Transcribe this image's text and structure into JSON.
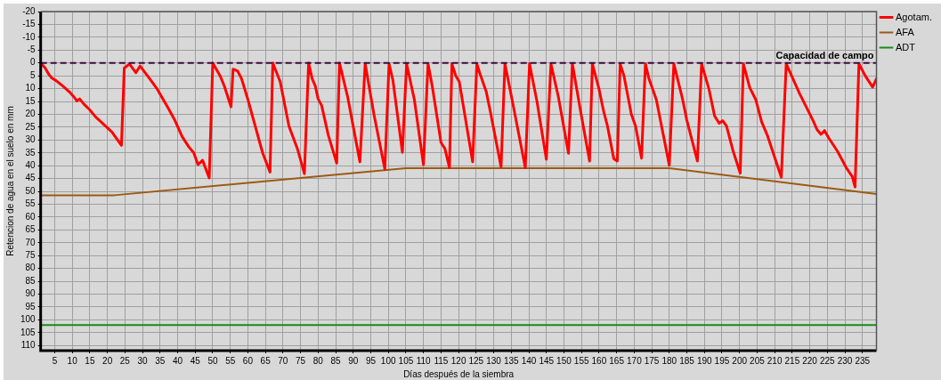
{
  "chart_data": {
    "type": "line",
    "xlabel": "Días después de la siembra",
    "ylabel": "Retencion de agua en el suelo en mm",
    "xlim": [
      1,
      239
    ],
    "xticks": [
      5,
      10,
      15,
      20,
      25,
      30,
      35,
      40,
      45,
      50,
      55,
      60,
      65,
      70,
      75,
      80,
      85,
      90,
      95,
      100,
      105,
      110,
      115,
      120,
      125,
      130,
      135,
      140,
      145,
      150,
      155,
      160,
      165,
      170,
      175,
      180,
      185,
      190,
      195,
      200,
      205,
      210,
      215,
      220,
      225,
      230,
      235
    ],
    "ylim": [
      112,
      -20
    ],
    "yticks": [
      -20,
      -15,
      -10,
      -5,
      0,
      5,
      10,
      15,
      20,
      25,
      30,
      35,
      40,
      45,
      50,
      55,
      60,
      65,
      70,
      75,
      80,
      85,
      90,
      95,
      100,
      105,
      110
    ],
    "grid": true,
    "legend": "top right",
    "marker": "none",
    "line_style": "solid",
    "ref_lines": [
      {
        "axis": "y",
        "value": 0,
        "label": "Capacidad de campo",
        "color": "#3c0a3c",
        "line_style": "dashed"
      }
    ],
    "series": [
      {
        "name": "Agotam.",
        "color": "#ff0000",
        "x": [
          1,
          2.3,
          3.3,
          4.2,
          5.4,
          7.3,
          9.2,
          10.7,
          11.3,
          12.1,
          13.3,
          15,
          16.7,
          17.9,
          21.3,
          24,
          24.8,
          26.3,
          28.1,
          29.3,
          31.7,
          34.2,
          37.1,
          39.2,
          41.3,
          43.2,
          44.6,
          45.8,
          47.1,
          49,
          50,
          52.1,
          53.3,
          55.2,
          55.8,
          57.1,
          58.2,
          60,
          62.1,
          64.2,
          66.3,
          67.1,
          69.2,
          71.7,
          74.2,
          76.1,
          77.3,
          78.3,
          79.2,
          80,
          81,
          82.9,
          85.3,
          86.1,
          88.4,
          91.9,
          93.4,
          95.9,
          99,
          100.2,
          101.3,
          104,
          105.2,
          107.4,
          110,
          111.3,
          112.5,
          115,
          116.1,
          117.4,
          118.1,
          119.2,
          120.2,
          124,
          125.2,
          126,
          127.9,
          129.2,
          132.1,
          133.2,
          135.4,
          139,
          140.2,
          142.3,
          145,
          146.3,
          148.4,
          151.3,
          152.4,
          154.6,
          157.3,
          158.1,
          160,
          161.3,
          162.4,
          164.2,
          165.2,
          166,
          167.1,
          169.2,
          170.4,
          172.1,
          173.2,
          174.2,
          176.3,
          180,
          181.3,
          183.8,
          185,
          188,
          189.2,
          191.3,
          192.9,
          194.2,
          195.2,
          196.3,
          198.2,
          200.2,
          201.1,
          202.9,
          204.6,
          206.3,
          207.9,
          211.9,
          213.3,
          217.1,
          220.9,
          222.1,
          223.2,
          224.2,
          225.4,
          227.9,
          230.4,
          232.1,
          232.9,
          234,
          235.8,
          237.9,
          239
        ],
        "values": [
          0,
          2,
          4.4,
          5.9,
          6.9,
          9,
          11.3,
          13.6,
          14.8,
          14,
          16,
          18.3,
          21.1,
          22.6,
          26.9,
          32.1,
          2,
          0.4,
          3.8,
          1.2,
          5.5,
          10.2,
          17.1,
          22.3,
          28.7,
          32.7,
          35,
          39.6,
          37.9,
          44.8,
          0,
          5,
          9,
          17.1,
          2.4,
          3.2,
          6.1,
          14.2,
          24.6,
          35,
          42.5,
          0,
          7.3,
          24.6,
          33.8,
          43.1,
          0,
          6.1,
          9,
          14,
          16.5,
          28.1,
          39,
          0,
          13.1,
          38.5,
          0.3,
          20,
          41.3,
          0.3,
          6.7,
          34.8,
          0.3,
          14.2,
          39.6,
          0.3,
          9,
          31,
          33.3,
          40.8,
          0.3,
          5,
          7.3,
          38.5,
          0.3,
          3.8,
          11.3,
          20,
          40.5,
          0.3,
          15.4,
          40.8,
          0.3,
          14.8,
          37.5,
          0.3,
          13.1,
          35.2,
          0.3,
          17.7,
          38.2,
          0.3,
          10.2,
          18.8,
          24.6,
          37.3,
          38.2,
          0.3,
          5,
          20,
          24.6,
          37.1,
          0.3,
          6.1,
          14.2,
          39.8,
          0.3,
          14.2,
          22.3,
          38.2,
          0.3,
          10.2,
          20.6,
          23.5,
          22.5,
          24.6,
          34.4,
          42.9,
          0.3,
          9.6,
          14.2,
          22.9,
          28.1,
          44.5,
          0.3,
          11.9,
          22.3,
          26,
          27.8,
          26.3,
          29.2,
          34.4,
          40.8,
          44.2,
          48.3,
          0.3,
          5,
          9.4,
          6.1
        ]
      },
      {
        "name": "AFA",
        "color": "#9c5a14",
        "x": [
          1,
          22,
          105,
          180,
          239
        ],
        "values": [
          51.5,
          51.5,
          41,
          41,
          51
        ]
      },
      {
        "name": "ADT",
        "color": "#1a8a1a",
        "x": [
          1,
          239
        ],
        "values": [
          102,
          102
        ]
      }
    ]
  }
}
